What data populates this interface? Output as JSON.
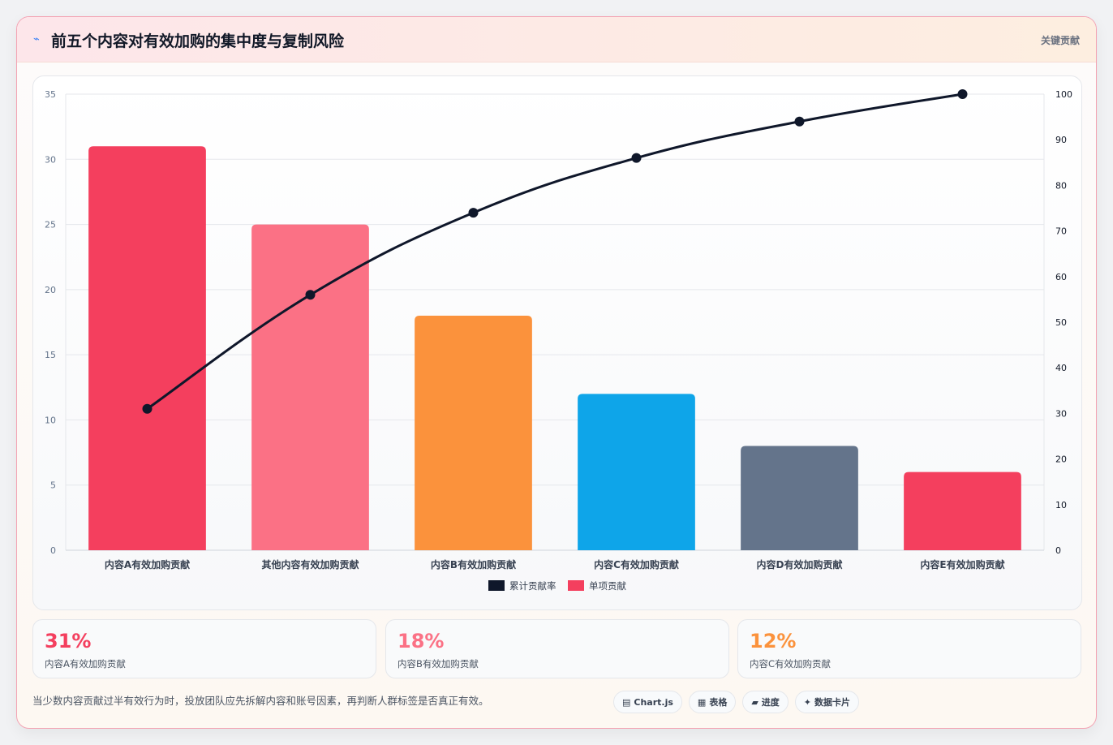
{
  "header": {
    "icon": "bolt-icon",
    "title": "前五个内容对有效加购的集中度与复制风险",
    "tag": "关键贡献"
  },
  "chart_data": {
    "type": "bar",
    "categories": [
      "内容A有效加购贡献",
      "其他内容有效加购贡献",
      "内容B有效加购贡献",
      "内容C有效加购贡献",
      "内容D有效加购贡献",
      "内容E有效加购贡献"
    ],
    "series": [
      {
        "name": "单项贡献",
        "type": "bar",
        "axis": "left",
        "values": [
          31,
          25,
          18,
          12,
          8,
          6
        ],
        "colors": [
          "#f43f5e",
          "#fb7185",
          "#fb923c",
          "#0ea5e9",
          "#64748b",
          "#f43f5e"
        ]
      },
      {
        "name": "累计贡献率",
        "type": "line",
        "axis": "right",
        "values": [
          31,
          56,
          74,
          86,
          94,
          100
        ],
        "color": "#0f172a"
      }
    ],
    "y_left": {
      "min": 0,
      "max": 35,
      "ticks": [
        0,
        5,
        10,
        15,
        20,
        25,
        30,
        35
      ]
    },
    "y_right": {
      "min": 0,
      "max": 100,
      "ticks": [
        0,
        10,
        20,
        30,
        40,
        50,
        60,
        70,
        80,
        90,
        100
      ]
    },
    "legend": {
      "placement": "bottom",
      "items": [
        {
          "label": "累计贡献率",
          "color": "#0f172a"
        },
        {
          "label": "单项贡献",
          "color": "#f43f5e"
        }
      ]
    },
    "grid": true
  },
  "kpis": [
    {
      "value": "31%",
      "label": "内容A有效加购贡献",
      "color": "#f43f5e"
    },
    {
      "value": "18%",
      "label": "内容B有效加购贡献",
      "color": "#fb7185"
    },
    {
      "value": "12%",
      "label": "内容C有效加购贡献",
      "color": "#fb923c"
    }
  ],
  "footnote": "当少数内容贡献过半有效行为时，投放团队应先拆解内容和账号因素，再判断人群标签是否真正有效。",
  "chips": [
    {
      "icon": "chart-icon",
      "glyph": "▤",
      "label": "Chart.js"
    },
    {
      "icon": "table-icon",
      "glyph": "▦",
      "label": "表格"
    },
    {
      "icon": "progress-icon",
      "glyph": "▰",
      "label": "进度"
    },
    {
      "icon": "sparkle-icon",
      "glyph": "✦",
      "label": "数据卡片"
    }
  ]
}
